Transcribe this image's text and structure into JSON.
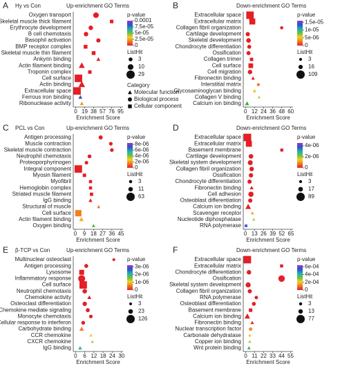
{
  "chart_data": [
    {
      "type": "scatter",
      "label": "A",
      "group": "Hy vs Con",
      "title": "Up-enrichment GO Terms",
      "x_label": "Enrichment Score",
      "categories": [
        "Oxygen transport",
        "Skeletal muscle thick filament",
        "Erythrocyte development",
        "B cell chemotaxis",
        "Basophil activation",
        "BMP receptor complex",
        "Skeletal muscle thin filament",
        "Ankyrin binding",
        "Actin filament binding",
        "Troponin complex",
        "Cell surface",
        "Actin binding",
        "Extracellular space",
        "Ferrous iron binding",
        "Ribonuclease activity"
      ],
      "x": [
        43,
        76,
        32,
        22,
        48,
        21,
        38,
        48,
        13,
        30,
        6,
        13,
        3,
        10,
        13
      ],
      "sizes": [
        10,
        3,
        5,
        5,
        4,
        4,
        4,
        3,
        12,
        3,
        29,
        16,
        29,
        3,
        3
      ],
      "colors": [
        "#e41f26",
        "#e41f26",
        "#e41f26",
        "#e41f26",
        "#e41f26",
        "#e41f26",
        "#e41f26",
        "#e41f26",
        "#e41f26",
        "#e41f26",
        "#e41f26",
        "#e41f26",
        "#e41f26",
        "#3050c0",
        "#e8a020"
      ],
      "shapes": [
        "circle",
        "square",
        "circle",
        "circle",
        "circle",
        "square",
        "square",
        "triangle",
        "triangle",
        "square",
        "square",
        "triangle",
        "square",
        "triangle",
        "triangle"
      ],
      "xlim": [
        -5,
        100
      ],
      "xticks": [
        0,
        19,
        38,
        57,
        76,
        95
      ],
      "color_legend": {
        "title": "p-value",
        "clim": [
          0,
          0.0001
        ],
        "ticks": [
          0.0001,
          {
            "value": 7.5e-05,
            "label": "7.5e-05"
          },
          {
            "value": 5e-05,
            "label": "5e-05"
          },
          {
            "value": 2.5e-05,
            "label": "2.5e-05"
          },
          0
        ]
      },
      "size_legend": {
        "title": "ListHit",
        "values": [
          3,
          10,
          29
        ]
      },
      "shape_legend": {
        "title": "Category",
        "items": [
          {
            "label": "Molecular function",
            "shape": "triangle"
          },
          {
            "label": "Biological process",
            "shape": "circle"
          },
          {
            "label": "Cellular component",
            "shape": "square"
          }
        ]
      }
    },
    {
      "type": "scatter",
      "label": "B",
      "title": "Down-enrichment GO Terms",
      "x_label": "Enrichment Score",
      "categories": [
        "Extracellular space",
        "Extracellular matrix",
        "Collagen fibril organization",
        "Cartilage development",
        "Skeletal development",
        "Chondrocyte differentiation",
        "Ossification",
        "Collagen trimer",
        "Cell surface",
        "Cell migration",
        "Fibronectin binding",
        "Interstitial matrix",
        "Glycosaminoglycan binding",
        "Collagen V binding",
        "Calcium ion binding"
      ],
      "x": [
        6,
        9,
        48,
        3,
        4,
        5,
        4,
        8,
        7,
        6,
        10,
        17,
        12,
        18,
        2
      ],
      "sizes": [
        109,
        60,
        5,
        15,
        20,
        12,
        14,
        10,
        30,
        18,
        8,
        3,
        8,
        3,
        16
      ],
      "colors": [
        "#e41f26",
        "#e41f26",
        "#e41f26",
        "#e41f26",
        "#e41f26",
        "#e41f26",
        "#e41f26",
        "#e41f26",
        "#e41f26",
        "#e41f26",
        "#e41f26",
        "#f07030",
        "#f0c020",
        "#a0d040",
        "#40b040"
      ],
      "shapes": [
        "square",
        "square",
        "circle",
        "circle",
        "circle",
        "circle",
        "circle",
        "square",
        "square",
        "circle",
        "triangle",
        "square",
        "triangle",
        "triangle",
        "triangle"
      ],
      "xlim": [
        -3,
        63
      ],
      "xticks": [
        0,
        12,
        24,
        36,
        48,
        60
      ],
      "color_legend": {
        "title": "p-value",
        "clim": [
          0,
          1.6e-05
        ],
        "ticks": [
          {
            "value": 1.5e-05,
            "label": "1.5e-05"
          },
          {
            "value": 1e-05,
            "label": "1e-05"
          },
          {
            "value": 5e-06,
            "label": "5e-06"
          },
          0
        ]
      },
      "size_legend": {
        "title": "ListHit",
        "values": [
          3,
          16,
          109
        ]
      }
    },
    {
      "type": "scatter",
      "label": "C",
      "group": "PCL vs Con",
      "title": "Up-enrichment GO Terms",
      "x_label": "Enrichment Score",
      "categories": [
        "Antigen processing",
        "Muscle contraction",
        "Skeletal muscle contraction",
        "Neutrophil chemotaxis",
        "Proteoporphyrinogen",
        "Integral component",
        "Myosin filament",
        "Myofibril",
        "Hemoglobin complex",
        "Striated muscle filament",
        "IgG binding",
        "Structural of muscle",
        "Cell surface",
        "Actin filament binding",
        "Oxygen binding"
      ],
      "x": [
        25,
        35,
        36,
        14,
        11,
        3,
        9,
        15,
        15,
        16,
        15,
        23,
        3,
        6,
        18
      ],
      "sizes": [
        8,
        5,
        5,
        6,
        5,
        63,
        6,
        4,
        4,
        5,
        6,
        3,
        40,
        11,
        5
      ],
      "colors": [
        "#e41f26",
        "#e41f26",
        "#e41f26",
        "#e41f26",
        "#e41f26",
        "#e41f26",
        "#e41f26",
        "#e41f26",
        "#e41f26",
        "#e41f26",
        "#e41f26",
        "#f07030",
        "#f08020",
        "#f0b020",
        "#60c040"
      ],
      "shapes": [
        "circle",
        "circle",
        "circle",
        "circle",
        "circle",
        "square",
        "square",
        "square",
        "square",
        "square",
        "triangle",
        "triangle",
        "square",
        "triangle",
        "triangle"
      ],
      "xlim": [
        -2,
        47
      ],
      "xticks": [
        0,
        9,
        18,
        27,
        36,
        45
      ],
      "color_legend": {
        "title": "p-value",
        "clim": [
          0,
          8.5e-06
        ],
        "ticks": [
          {
            "value": 8e-06,
            "label": "8e-06"
          },
          {
            "value": 6e-06,
            "label": "6e-06"
          },
          {
            "value": 4e-06,
            "label": "4e-06"
          },
          {
            "value": 2e-06,
            "label": "2e-06"
          },
          0
        ]
      },
      "size_legend": {
        "title": "ListHit",
        "values": [
          3,
          11,
          63
        ]
      }
    },
    {
      "type": "scatter",
      "label": "D",
      "title": "Down-enrichment GO Terms",
      "x_label": "Enrichment Score",
      "categories": [
        "Extracellular space",
        "Extracellular matrix",
        "Basement membrane",
        "Cartilage development",
        "Skeletal system development",
        "Collagen fibril organization",
        "Ossification",
        "Chondrocyte differentiation",
        "Fibronectin binding",
        "Cell adhesion",
        "Osteoblast differentiation",
        "Calcium ion binding",
        "Scavenger receptor",
        "Nucleotide diphosphatase",
        "RNA polymerase"
      ],
      "x": [
        3,
        5,
        52,
        8,
        7,
        9,
        8,
        6,
        9,
        8,
        7,
        4,
        10,
        12,
        1
      ],
      "sizes": [
        89,
        50,
        5,
        17,
        20,
        15,
        14,
        12,
        8,
        25,
        12,
        30,
        4,
        3,
        3
      ],
      "colors": [
        "#e41f26",
        "#e41f26",
        "#e41f26",
        "#e41f26",
        "#e41f26",
        "#e41f26",
        "#e41f26",
        "#e41f26",
        "#e41f26",
        "#e41f26",
        "#e41f26",
        "#e41f26",
        "#f0a020",
        "#a0d040",
        "#4060d0"
      ],
      "shapes": [
        "square",
        "square",
        "square",
        "circle",
        "circle",
        "circle",
        "circle",
        "circle",
        "triangle",
        "circle",
        "circle",
        "triangle",
        "triangle",
        "triangle",
        "square"
      ],
      "xlim": [
        -3,
        68
      ],
      "xticks": [
        0,
        13,
        26,
        39,
        52,
        65
      ],
      "color_legend": {
        "title": "p-value",
        "clim": [
          0,
          4.5e-06
        ],
        "ticks": [
          {
            "value": 4e-06,
            "label": "4e-06"
          },
          {
            "value": 2e-06,
            "label": "2e-06"
          },
          0
        ]
      },
      "size_legend": {
        "title": "ListHit",
        "values": [
          3,
          17,
          89
        ]
      }
    },
    {
      "type": "scatter",
      "label": "E",
      "group": "β-TCP vs Con",
      "title": "Up-enrichment GO Terms",
      "x_label": "Enrichment Score",
      "categories": [
        "Multinuclear osteoclast",
        "Antigen processing",
        "Lysosome",
        "Inflammatory response",
        "Cell surface",
        "Neutrophil chemotaxis",
        "Chemokine activity",
        "Osteoclast differentiation",
        "Chemokine mediate signaling",
        "Monocyte chemotaxis",
        "Cellular response to interferon",
        "Carbohydrate binding",
        "CCR chemokine",
        "CXCR chemokine",
        "IgG binding"
      ],
      "x": [
        25,
        7,
        4,
        4,
        5,
        6,
        9,
        6,
        8,
        10,
        5,
        4,
        10,
        11,
        3
      ],
      "sizes": [
        3,
        14,
        40,
        80,
        126,
        23,
        15,
        20,
        15,
        10,
        12,
        23,
        4,
        4,
        12
      ],
      "colors": [
        "#e41f26",
        "#e41f26",
        "#e41f26",
        "#e41f26",
        "#e41f26",
        "#e41f26",
        "#e41f26",
        "#e41f26",
        "#e41f26",
        "#e41f26",
        "#e41f26",
        "#f08030",
        "#f0c020",
        "#a0d040",
        "#40b0a0"
      ],
      "shapes": [
        "circle",
        "circle",
        "square",
        "circle",
        "square",
        "circle",
        "triangle",
        "circle",
        "circle",
        "circle",
        "circle",
        "triangle",
        "triangle",
        "triangle",
        "triangle"
      ],
      "xlim": [
        -1.5,
        31
      ],
      "xticks": [
        0,
        6,
        12,
        18,
        24,
        30
      ],
      "color_legend": {
        "title": "p-value",
        "clim": [
          0,
          3.2e-06
        ],
        "ticks": [
          {
            "value": 3e-06,
            "label": "3e-06"
          },
          {
            "value": 2e-06,
            "label": "2e-06"
          },
          {
            "value": 1e-06,
            "label": "1e-06"
          },
          0
        ]
      },
      "size_legend": {
        "title": "ListHit",
        "values": [
          3,
          23,
          126
        ]
      }
    },
    {
      "type": "scatter",
      "label": "F",
      "title": "Down-enrichment GO Terms",
      "x_label": "Enrichment Score",
      "categories": [
        "Extracellular space",
        "Extracellular matrix",
        "Chondrocyte differentiation",
        "Ossification",
        "Skeletal system development",
        "Collagen fibril organization",
        "RNA polymerase",
        "Osteoblast differentiation",
        "Basement membrane",
        "Calcium ion binding",
        "Fibronectin binding",
        "Nuclear transcription factor",
        "Carbonate dehydratase",
        "Copper ion binding",
        "Wnt protein binding"
      ],
      "x": [
        2,
        44,
        4,
        44,
        3,
        5,
        13,
        10,
        6,
        2,
        8,
        6,
        5,
        5,
        4
      ],
      "sizes": [
        77,
        5,
        13,
        40,
        20,
        10,
        5,
        8,
        8,
        25,
        5,
        5,
        3,
        3,
        5
      ],
      "colors": [
        "#e41f26",
        "#e41f26",
        "#e41f26",
        "#e41f26",
        "#e41f26",
        "#e41f26",
        "#e41f26",
        "#e41f26",
        "#e41f26",
        "#e41f26",
        "#e41f26",
        "#f09020",
        "#f0c020",
        "#a0d040",
        "#40b070"
      ],
      "shapes": [
        "square",
        "square",
        "circle",
        "circle",
        "circle",
        "circle",
        "circle",
        "circle",
        "square",
        "triangle",
        "triangle",
        "circle",
        "triangle",
        "triangle",
        "triangle"
      ],
      "xlim": [
        -3,
        58
      ],
      "xticks": [
        0,
        11,
        22,
        33,
        44,
        55
      ],
      "color_legend": {
        "title": "p-value",
        "clim": [
          0,
          0.00064
        ],
        "ticks": [
          {
            "value": 0.0006,
            "label": "6e-04"
          },
          {
            "value": 0.0004,
            "label": "4e-04"
          },
          {
            "value": 0.0002,
            "label": "2e-04"
          },
          0
        ]
      },
      "size_legend": {
        "title": "ListHit",
        "values": [
          3,
          13,
          77
        ]
      }
    }
  ]
}
